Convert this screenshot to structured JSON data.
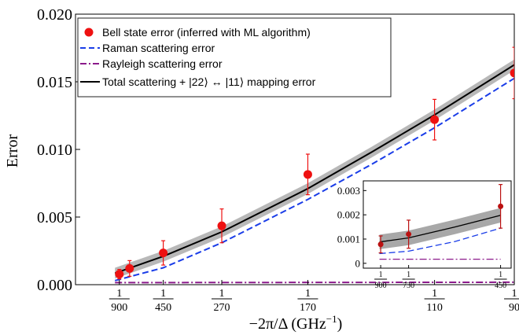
{
  "chart_data": [
    {
      "type": "scatter",
      "title": "",
      "xlabel_main": "−2π/Δ (GHz",
      "xlabel_sup": "−1",
      "xlabel_close": ")",
      "ylabel": "Error",
      "xlim": [
        0,
        0.01111
      ],
      "ylim": [
        0,
        0.02
      ],
      "grid": false,
      "legend_position": "top-left",
      "y_ticks": [
        {
          "value": 0.0,
          "label": "0.000"
        },
        {
          "value": 0.005,
          "label": "0.005"
        },
        {
          "value": 0.01,
          "label": "0.010"
        },
        {
          "value": 0.015,
          "label": "0.015"
        },
        {
          "value": 0.02,
          "label": "0.020"
        }
      ],
      "x_ticks": [
        {
          "value": 0.0011111,
          "num": "1",
          "den": "900"
        },
        {
          "value": 0.0022222,
          "num": "1",
          "den": "450"
        },
        {
          "value": 0.0037037,
          "num": "1",
          "den": "270"
        },
        {
          "value": 0.0058824,
          "num": "1",
          "den": "170"
        },
        {
          "value": 0.0090909,
          "num": "1",
          "den": "110"
        },
        {
          "value": 0.0111111,
          "num": "1",
          "den": "90"
        }
      ],
      "series": [
        {
          "name": "Bell state error (inferred with ML algorithm)",
          "kind": "points_with_errorbars",
          "color": "#ee1111",
          "points": [
            {
              "x": 0.0011111,
              "y": 0.00078,
              "yerr": 0.00035
            },
            {
              "x": 0.0013699,
              "y": 0.0012,
              "yerr": 0.00058
            },
            {
              "x": 0.0022222,
              "y": 0.00235,
              "yerr": 0.0009
            },
            {
              "x": 0.0037037,
              "y": 0.00435,
              "yerr": 0.00125
            },
            {
              "x": 0.0058824,
              "y": 0.00815,
              "yerr": 0.0015
            },
            {
              "x": 0.0090909,
              "y": 0.0122,
              "yerr": 0.0015
            },
            {
              "x": 0.0111111,
              "y": 0.01565,
              "yerr": 0.0019
            }
          ]
        },
        {
          "name": "Raman scattering error",
          "kind": "dashed_line",
          "color": "#1a3de8",
          "points": [
            {
              "x": 0.001,
              "y": 0.0003
            },
            {
              "x": 0.0022222,
              "y": 0.00125
            },
            {
              "x": 0.0037037,
              "y": 0.0031
            },
            {
              "x": 0.0058824,
              "y": 0.0063
            },
            {
              "x": 0.0075,
              "y": 0.0089
            },
            {
              "x": 0.0090909,
              "y": 0.0116
            },
            {
              "x": 0.0113,
              "y": 0.0156
            }
          ]
        },
        {
          "name": "Rayleigh scattering error",
          "kind": "dashdot_line",
          "color": "#8b1a8b",
          "points": [
            {
              "x": 0.001,
              "y": 0.00015
            },
            {
              "x": 0.0113,
              "y": 0.00018
            }
          ]
        },
        {
          "name": "Total scattering + |22⟩ ↔ |11⟩ mapping error",
          "kind": "solid_line_with_band",
          "color": "#000000",
          "band_color": "#b8b8b8",
          "band_halfwidth": 0.0004,
          "points": [
            {
              "x": 0.001,
              "y": 0.00085
            },
            {
              "x": 0.0022222,
              "y": 0.0021
            },
            {
              "x": 0.0037037,
              "y": 0.0039
            },
            {
              "x": 0.0058824,
              "y": 0.0071
            },
            {
              "x": 0.0075,
              "y": 0.0098
            },
            {
              "x": 0.0090909,
              "y": 0.01255
            },
            {
              "x": 0.0113,
              "y": 0.0166
            }
          ]
        }
      ]
    },
    {
      "type": "scatter",
      "title": "",
      "inset": true,
      "xlim": [
        0.00095,
        0.00232
      ],
      "ylim": [
        -0.0002,
        0.0034
      ],
      "y_ticks": [
        {
          "value": 0.0,
          "label": "0"
        },
        {
          "value": 0.001,
          "label": "0.001"
        },
        {
          "value": 0.002,
          "label": "0.002"
        },
        {
          "value": 0.003,
          "label": "0.003"
        }
      ],
      "x_ticks": [
        {
          "value": 0.0011111,
          "num": "1",
          "den": "900"
        },
        {
          "value": 0.0013699,
          "num": "1",
          "den": "730"
        },
        {
          "value": 0.0022222,
          "num": "1",
          "den": "450"
        }
      ],
      "series": [
        {
          "name": "Bell state error (inferred with ML algorithm)",
          "kind": "points_with_errorbars",
          "color": "#bb1111",
          "points": [
            {
              "x": 0.0011111,
              "y": 0.00078,
              "yerr": 0.00035
            },
            {
              "x": 0.0013699,
              "y": 0.0012,
              "yerr": 0.00058
            },
            {
              "x": 0.0022222,
              "y": 0.00235,
              "yerr": 0.0009
            }
          ]
        },
        {
          "name": "Raman scattering error",
          "kind": "dashed_line",
          "color": "#1a3de8",
          "points": [
            {
              "x": 0.0011,
              "y": 0.0004
            },
            {
              "x": 0.0013699,
              "y": 0.0005
            },
            {
              "x": 0.0018,
              "y": 0.0009
            },
            {
              "x": 0.0022222,
              "y": 0.00145
            }
          ]
        },
        {
          "name": "Rayleigh scattering error",
          "kind": "dashdot_line",
          "color": "#8b1a8b",
          "points": [
            {
              "x": 0.0011,
              "y": 0.00017
            },
            {
              "x": 0.0022222,
              "y": 0.00017
            }
          ]
        },
        {
          "name": "Total scattering + |22⟩ ↔ |11⟩ mapping error",
          "kind": "solid_line_with_band",
          "color": "#000000",
          "band_color": "#a8a8a8",
          "band_halfwidth": 0.0003,
          "points": [
            {
              "x": 0.0011,
              "y": 0.00088
            },
            {
              "x": 0.0013699,
              "y": 0.00105
            },
            {
              "x": 0.0018,
              "y": 0.0015
            },
            {
              "x": 0.0022222,
              "y": 0.00198
            }
          ]
        }
      ]
    }
  ]
}
